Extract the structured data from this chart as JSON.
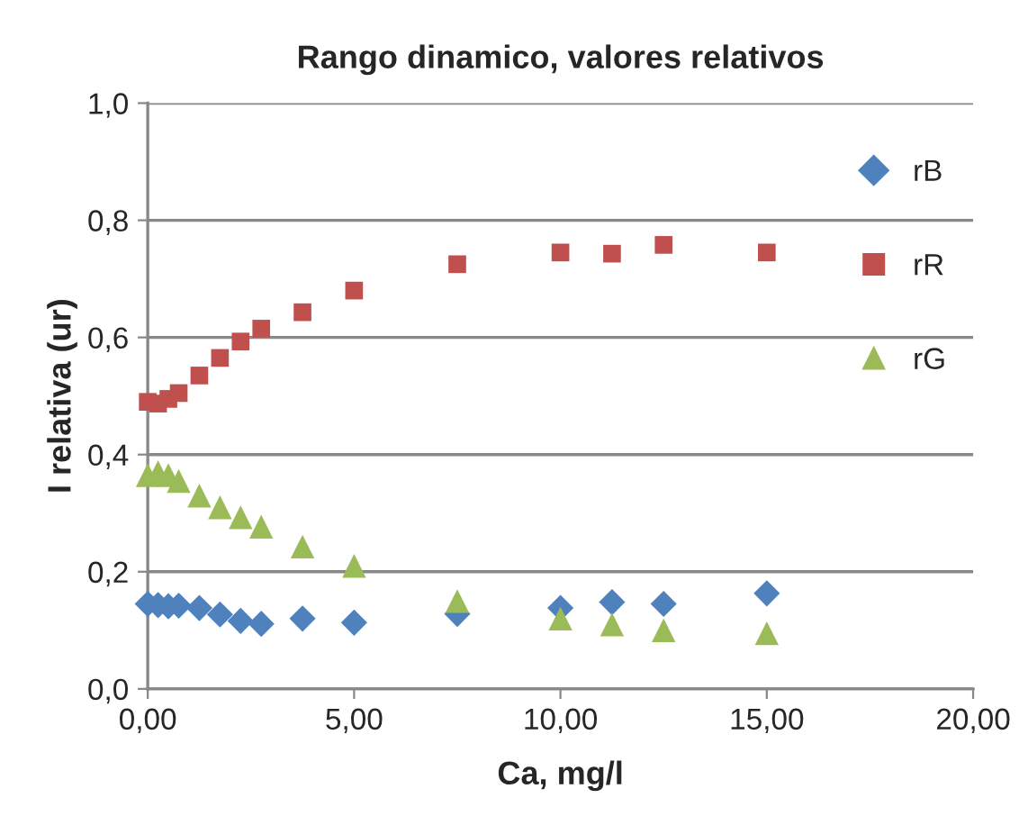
{
  "chart_data": {
    "type": "scatter",
    "title": "Rango dinamico, valores relativos",
    "xlabel": "Ca, mg/l",
    "ylabel": "I relativa (ur)",
    "x": [
      0,
      0.25,
      0.5,
      0.75,
      1.25,
      1.75,
      2.25,
      2.75,
      3.75,
      5,
      7.5,
      10,
      11.25,
      12.5,
      15
    ],
    "series": [
      {
        "name": "rB",
        "color": "#4f81bd",
        "marker": "diamond",
        "values": [
          0.145,
          0.143,
          0.141,
          0.142,
          0.138,
          0.127,
          0.116,
          0.111,
          0.12,
          0.113,
          0.128,
          0.138,
          0.148,
          0.145,
          0.163
        ]
      },
      {
        "name": "rR",
        "color": "#c0504d",
        "marker": "square",
        "values": [
          0.49,
          0.487,
          0.495,
          0.505,
          0.535,
          0.565,
          0.593,
          0.615,
          0.643,
          0.68,
          0.725,
          0.745,
          0.743,
          0.758,
          0.745
        ]
      },
      {
        "name": "rG",
        "color": "#9bbb59",
        "marker": "triangle",
        "values": [
          0.365,
          0.37,
          0.365,
          0.355,
          0.33,
          0.31,
          0.293,
          0.277,
          0.243,
          0.21,
          0.15,
          0.12,
          0.11,
          0.1,
          0.095
        ]
      }
    ],
    "xlim": [
      0,
      20
    ],
    "ylim": [
      0,
      1
    ],
    "xticks": [
      {
        "value": 0,
        "label": "0,00"
      },
      {
        "value": 5,
        "label": "5,00"
      },
      {
        "value": 10,
        "label": "10,00"
      },
      {
        "value": 15,
        "label": "15,00"
      },
      {
        "value": 20,
        "label": "20,00"
      }
    ],
    "yticks": [
      {
        "value": 0,
        "label": "0,0"
      },
      {
        "value": 0.2,
        "label": "0,2"
      },
      {
        "value": 0.4,
        "label": "0,4"
      },
      {
        "value": 0.6,
        "label": "0,6"
      },
      {
        "value": 0.8,
        "label": "0,8"
      },
      {
        "value": 1,
        "label": "1,0"
      }
    ],
    "grid": "y",
    "legend": "right"
  }
}
